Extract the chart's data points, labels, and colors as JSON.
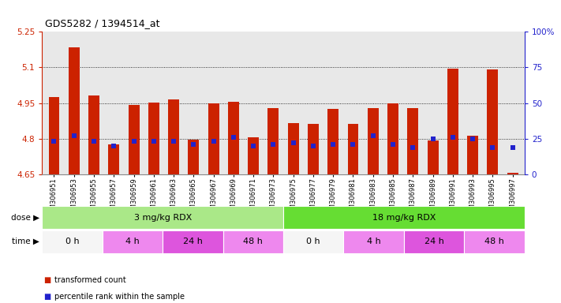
{
  "title": "GDS5282 / 1394514_at",
  "samples": [
    "GSM306951",
    "GSM306953",
    "GSM306955",
    "GSM306957",
    "GSM306959",
    "GSM306961",
    "GSM306963",
    "GSM306965",
    "GSM306967",
    "GSM306969",
    "GSM306971",
    "GSM306973",
    "GSM306975",
    "GSM306977",
    "GSM306979",
    "GSM306981",
    "GSM306983",
    "GSM306985",
    "GSM306987",
    "GSM306989",
    "GSM306991",
    "GSM306993",
    "GSM306995",
    "GSM306997"
  ],
  "transformed_counts": [
    4.975,
    5.185,
    4.982,
    4.775,
    4.942,
    4.952,
    4.965,
    4.795,
    4.948,
    4.956,
    4.807,
    4.93,
    4.865,
    4.862,
    4.925,
    4.862,
    4.928,
    4.95,
    4.928,
    4.793,
    5.095,
    4.812,
    5.092,
    4.655
  ],
  "percentile_ranks": [
    23,
    27,
    23,
    20,
    23,
    23,
    23,
    21,
    23,
    26,
    20,
    21,
    22,
    20,
    21,
    21,
    27,
    21,
    19,
    25,
    26,
    25,
    19,
    19
  ],
  "ymin": 4.65,
  "ymax": 5.25,
  "yticks": [
    4.65,
    4.8,
    4.95,
    5.1,
    5.25
  ],
  "ytick_labels": [
    "4.65",
    "4.8",
    "4.95",
    "5.1",
    "5.25"
  ],
  "right_yticks": [
    0,
    25,
    50,
    75,
    100
  ],
  "right_ytick_labels": [
    "0",
    "25",
    "50",
    "75",
    "100%"
  ],
  "bar_color": "#cc2200",
  "percentile_color": "#2222cc",
  "baseline": 4.65,
  "dose_groups": [
    {
      "label": "3 mg/kg RDX",
      "start": 0,
      "end": 12,
      "color": "#aae888"
    },
    {
      "label": "18 mg/kg RDX",
      "start": 12,
      "end": 24,
      "color": "#66dd33"
    }
  ],
  "time_groups": [
    {
      "label": "0 h",
      "start": 0,
      "end": 3,
      "color": "#f5f5f5"
    },
    {
      "label": "4 h",
      "start": 3,
      "end": 6,
      "color": "#ee88ee"
    },
    {
      "label": "24 h",
      "start": 6,
      "end": 9,
      "color": "#dd55dd"
    },
    {
      "label": "48 h",
      "start": 9,
      "end": 12,
      "color": "#ee88ee"
    },
    {
      "label": "0 h",
      "start": 12,
      "end": 15,
      "color": "#f5f5f5"
    },
    {
      "label": "4 h",
      "start": 15,
      "end": 18,
      "color": "#ee88ee"
    },
    {
      "label": "24 h",
      "start": 18,
      "end": 21,
      "color": "#dd55dd"
    },
    {
      "label": "48 h",
      "start": 21,
      "end": 24,
      "color": "#ee88ee"
    }
  ],
  "legend_items": [
    {
      "label": "transformed count",
      "color": "#cc2200"
    },
    {
      "label": "percentile rank within the sample",
      "color": "#2222cc"
    }
  ],
  "bar_width": 0.55,
  "dot_size": 18,
  "grid_lines": [
    4.8,
    4.95,
    5.1
  ],
  "plot_bg": "#e8e8e8"
}
